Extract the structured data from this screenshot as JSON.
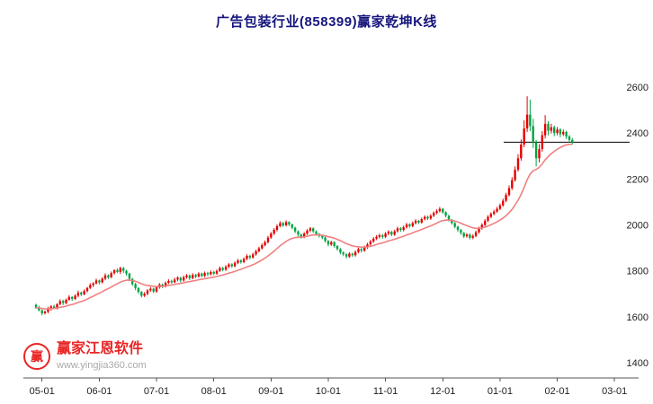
{
  "page": {
    "title": "广告包装行业(858399)赢家乾坤K线"
  },
  "watermark": {
    "brand": "赢家江恩软件",
    "url": "www.yingjia360.com",
    "logo_char": "赢"
  },
  "chart_data": {
    "type": "candlestick",
    "title": "广告包装行业(858399)赢家乾坤K线",
    "industry": "广告包装行业",
    "symbol": "858399",
    "x_ticks": [
      "05-01",
      "06-01",
      "07-01",
      "08-01",
      "09-01",
      "10-01",
      "11-01",
      "12-01",
      "01-01",
      "02-01",
      "03-01"
    ],
    "y_ticks": [
      1400,
      1600,
      1800,
      2000,
      2200,
      2400,
      2600
    ],
    "ylim": [
      1400,
      2600
    ],
    "grid": "off",
    "legend": "none",
    "candles_per_month": 19,
    "tick_candle_offset": 2,
    "last_price": 2360,
    "ma": {
      "type": "ema",
      "period": 18
    },
    "colors": {
      "up": "#e60000",
      "down": "#00a443",
      "ma": "#f08080",
      "last_price_line": "#000000",
      "title": "#15157d",
      "brand": "#e60000",
      "url_text": "#9a9a9a",
      "axis": "#555555",
      "tick_text": "#222222"
    },
    "series": [
      {
        "name": "K线",
        "ohlc": [
          [
            1652,
            1657,
            1634,
            1640
          ],
          [
            1640,
            1648,
            1624,
            1628
          ],
          [
            1628,
            1632,
            1606,
            1615
          ],
          [
            1615,
            1628,
            1610,
            1622
          ],
          [
            1622,
            1643,
            1615,
            1634
          ],
          [
            1634,
            1650,
            1626,
            1645
          ],
          [
            1645,
            1652,
            1634,
            1638
          ],
          [
            1638,
            1659,
            1632,
            1655
          ],
          [
            1655,
            1676,
            1650,
            1668
          ],
          [
            1668,
            1674,
            1651,
            1660
          ],
          [
            1660,
            1679,
            1654,
            1674
          ],
          [
            1674,
            1694,
            1670,
            1686
          ],
          [
            1686,
            1690,
            1669,
            1678
          ],
          [
            1678,
            1698,
            1673,
            1692
          ],
          [
            1692,
            1714,
            1685,
            1705
          ],
          [
            1705,
            1710,
            1690,
            1698
          ],
          [
            1698,
            1719,
            1694,
            1712
          ],
          [
            1712,
            1730,
            1706,
            1726
          ],
          [
            1726,
            1746,
            1721,
            1738
          ],
          [
            1738,
            1751,
            1729,
            1745
          ],
          [
            1745,
            1766,
            1741,
            1758
          ],
          [
            1758,
            1762,
            1741,
            1750
          ],
          [
            1750,
            1772,
            1745,
            1766
          ],
          [
            1766,
            1789,
            1759,
            1780
          ],
          [
            1780,
            1785,
            1764,
            1772
          ],
          [
            1772,
            1797,
            1768,
            1790
          ],
          [
            1790,
            1807,
            1784,
            1803
          ],
          [
            1803,
            1811,
            1790,
            1795
          ],
          [
            1795,
            1818,
            1786,
            1812
          ],
          [
            1812,
            1817,
            1791,
            1800
          ],
          [
            1800,
            1805,
            1779,
            1788
          ],
          [
            1788,
            1792,
            1757,
            1765
          ],
          [
            1765,
            1769,
            1735,
            1742
          ],
          [
            1742,
            1748,
            1716,
            1725
          ],
          [
            1725,
            1730,
            1700,
            1708
          ],
          [
            1708,
            1712,
            1684,
            1692
          ],
          [
            1692,
            1707,
            1686,
            1700
          ],
          [
            1700,
            1720,
            1693,
            1715
          ],
          [
            1715,
            1730,
            1709,
            1722
          ],
          [
            1722,
            1726,
            1703,
            1710
          ],
          [
            1710,
            1734,
            1704,
            1728
          ],
          [
            1728,
            1747,
            1722,
            1740
          ],
          [
            1740,
            1745,
            1724,
            1732
          ],
          [
            1732,
            1754,
            1727,
            1748
          ],
          [
            1748,
            1763,
            1742,
            1756
          ],
          [
            1756,
            1761,
            1743,
            1750
          ],
          [
            1750,
            1770,
            1746,
            1762
          ],
          [
            1762,
            1776,
            1755,
            1770
          ],
          [
            1770,
            1774,
            1750,
            1758
          ],
          [
            1758,
            1779,
            1753,
            1772
          ],
          [
            1772,
            1786,
            1766,
            1780
          ],
          [
            1780,
            1784,
            1760,
            1768
          ],
          [
            1768,
            1790,
            1763,
            1782
          ],
          [
            1782,
            1787,
            1768,
            1775
          ],
          [
            1775,
            1794,
            1770,
            1788
          ],
          [
            1788,
            1792,
            1771,
            1778
          ],
          [
            1778,
            1797,
            1772,
            1790
          ],
          [
            1790,
            1796,
            1777,
            1785
          ],
          [
            1785,
            1802,
            1780,
            1795
          ],
          [
            1795,
            1800,
            1781,
            1788
          ],
          [
            1788,
            1806,
            1783,
            1800
          ],
          [
            1800,
            1819,
            1795,
            1812
          ],
          [
            1812,
            1817,
            1798,
            1805
          ],
          [
            1805,
            1825,
            1800,
            1818
          ],
          [
            1818,
            1834,
            1812,
            1828
          ],
          [
            1828,
            1833,
            1813,
            1820
          ],
          [
            1820,
            1841,
            1815,
            1835
          ],
          [
            1835,
            1852,
            1829,
            1845
          ],
          [
            1845,
            1850,
            1831,
            1838
          ],
          [
            1838,
            1859,
            1833,
            1852
          ],
          [
            1852,
            1872,
            1846,
            1865
          ],
          [
            1865,
            1870,
            1850,
            1858
          ],
          [
            1858,
            1879,
            1853,
            1872
          ],
          [
            1872,
            1892,
            1866,
            1885
          ],
          [
            1885,
            1905,
            1880,
            1898
          ],
          [
            1898,
            1919,
            1892,
            1912
          ],
          [
            1912,
            1932,
            1906,
            1925
          ],
          [
            1925,
            1952,
            1919,
            1945
          ],
          [
            1945,
            1969,
            1939,
            1962
          ],
          [
            1962,
            1986,
            1956,
            1978
          ],
          [
            1978,
            2002,
            1972,
            1995
          ],
          [
            1995,
            2016,
            1990,
            2008
          ],
          [
            2008,
            2013,
            1991,
            1998
          ],
          [
            1998,
            2020,
            1993,
            2012
          ],
          [
            2012,
            2016,
            1995,
            2002
          ],
          [
            2002,
            2006,
            1981,
            1988
          ],
          [
            1988,
            1992,
            1964,
            1972
          ],
          [
            1972,
            1976,
            1950,
            1958
          ],
          [
            1958,
            1962,
            1941,
            1948
          ],
          [
            1948,
            1968,
            1942,
            1962
          ],
          [
            1962,
            1982,
            1956,
            1975
          ],
          [
            1975,
            1991,
            1968,
            1985
          ],
          [
            1985,
            1989,
            1965,
            1972
          ],
          [
            1972,
            1976,
            1953,
            1960
          ],
          [
            1960,
            1965,
            1945,
            1952
          ],
          [
            1952,
            1957,
            1938,
            1945
          ],
          [
            1945,
            1949,
            1923,
            1930
          ],
          [
            1930,
            1934,
            1907,
            1915
          ],
          [
            1915,
            1931,
            1909,
            1925
          ],
          [
            1925,
            1929,
            1901,
            1908
          ],
          [
            1908,
            1912,
            1888,
            1895
          ],
          [
            1895,
            1899,
            1872,
            1880
          ],
          [
            1880,
            1885,
            1864,
            1872
          ],
          [
            1872,
            1876,
            1854,
            1862
          ],
          [
            1862,
            1881,
            1856,
            1875
          ],
          [
            1875,
            1879,
            1860,
            1868
          ],
          [
            1868,
            1889,
            1862,
            1882
          ],
          [
            1882,
            1901,
            1876,
            1895
          ],
          [
            1895,
            1899,
            1880,
            1888
          ],
          [
            1888,
            1909,
            1883,
            1902
          ],
          [
            1902,
            1922,
            1896,
            1915
          ],
          [
            1915,
            1935,
            1909,
            1928
          ],
          [
            1928,
            1947,
            1922,
            1940
          ],
          [
            1940,
            1955,
            1934,
            1948
          ],
          [
            1948,
            1962,
            1941,
            1955
          ],
          [
            1955,
            1960,
            1940,
            1948
          ],
          [
            1948,
            1969,
            1943,
            1962
          ],
          [
            1962,
            1977,
            1955,
            1970
          ],
          [
            1970,
            1974,
            1951,
            1958
          ],
          [
            1958,
            1979,
            1952,
            1972
          ],
          [
            1972,
            1992,
            1966,
            1985
          ],
          [
            1985,
            1990,
            1970,
            1978
          ],
          [
            1978,
            1997,
            1972,
            1990
          ],
          [
            1990,
            2009,
            1984,
            2002
          ],
          [
            2002,
            2007,
            1988,
            1995
          ],
          [
            1995,
            2015,
            1990,
            2008
          ],
          [
            2008,
            2025,
            2002,
            2018
          ],
          [
            2018,
            2022,
            2003,
            2010
          ],
          [
            2010,
            2032,
            2005,
            2025
          ],
          [
            2025,
            2042,
            2019,
            2035
          ],
          [
            2035,
            2040,
            2021,
            2028
          ],
          [
            2028,
            2047,
            2022,
            2040
          ],
          [
            2040,
            2059,
            2034,
            2052
          ],
          [
            2052,
            2068,
            2046,
            2060
          ],
          [
            2060,
            2078,
            2054,
            2070
          ],
          [
            2070,
            2074,
            2048,
            2055
          ],
          [
            2055,
            2059,
            2033,
            2040
          ],
          [
            2040,
            2044,
            2015,
            2022
          ],
          [
            2022,
            2026,
            2001,
            2008
          ],
          [
            2008,
            2012,
            1985,
            1992
          ],
          [
            1992,
            1996,
            1970,
            1978
          ],
          [
            1978,
            1982,
            1957,
            1965
          ],
          [
            1965,
            1969,
            1943,
            1950
          ],
          [
            1950,
            1964,
            1944,
            1958
          ],
          [
            1958,
            1962,
            1937,
            1944
          ],
          [
            1944,
            1959,
            1938,
            1952
          ],
          [
            1952,
            1975,
            1946,
            1968
          ],
          [
            1968,
            1992,
            1962,
            1985
          ],
          [
            1985,
            2007,
            1979,
            2000
          ],
          [
            2000,
            2025,
            1994,
            2018
          ],
          [
            2018,
            2042,
            2012,
            2035
          ],
          [
            2035,
            2055,
            2029,
            2048
          ],
          [
            2048,
            2066,
            2042,
            2058
          ],
          [
            2058,
            2078,
            2052,
            2070
          ],
          [
            2070,
            2093,
            2064,
            2085
          ],
          [
            2085,
            2114,
            2079,
            2105
          ],
          [
            2105,
            2140,
            2099,
            2130
          ],
          [
            2130,
            2172,
            2124,
            2160
          ],
          [
            2160,
            2208,
            2152,
            2195
          ],
          [
            2195,
            2255,
            2188,
            2240
          ],
          [
            2240,
            2308,
            2232,
            2290
          ],
          [
            2290,
            2372,
            2280,
            2350
          ],
          [
            2350,
            2455,
            2338,
            2420
          ],
          [
            2420,
            2560,
            2405,
            2480
          ],
          [
            2480,
            2545,
            2408,
            2430
          ],
          [
            2430,
            2462,
            2335,
            2360
          ],
          [
            2360,
            2370,
            2255,
            2290
          ],
          [
            2290,
            2352,
            2272,
            2330
          ],
          [
            2330,
            2408,
            2318,
            2390
          ],
          [
            2390,
            2478,
            2376,
            2440
          ],
          [
            2440,
            2452,
            2390,
            2410
          ],
          [
            2410,
            2440,
            2398,
            2425
          ],
          [
            2425,
            2432,
            2386,
            2400
          ],
          [
            2400,
            2426,
            2390,
            2415
          ],
          [
            2415,
            2421,
            2382,
            2395
          ],
          [
            2395,
            2415,
            2387,
            2405
          ],
          [
            2405,
            2410,
            2374,
            2385
          ],
          [
            2385,
            2392,
            2360,
            2370
          ],
          [
            2370,
            2378,
            2350,
            2360
          ]
        ]
      }
    ]
  }
}
